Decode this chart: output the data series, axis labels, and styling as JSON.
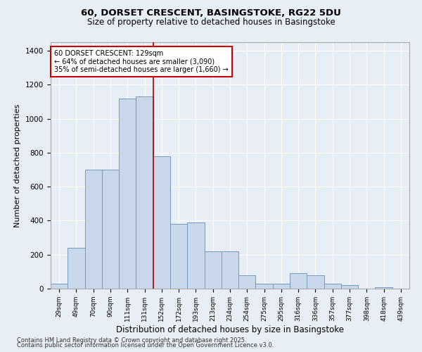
{
  "title_line1": "60, DORSET CRESCENT, BASINGSTOKE, RG22 5DU",
  "title_line2": "Size of property relative to detached houses in Basingstoke",
  "xlabel": "Distribution of detached houses by size in Basingstoke",
  "ylabel": "Number of detached properties",
  "bar_categories": [
    "29sqm",
    "49sqm",
    "70sqm",
    "90sqm",
    "111sqm",
    "131sqm",
    "152sqm",
    "172sqm",
    "193sqm",
    "213sqm",
    "234sqm",
    "254sqm",
    "275sqm",
    "295sqm",
    "316sqm",
    "336sqm",
    "357sqm",
    "377sqm",
    "398sqm",
    "418sqm",
    "439sqm"
  ],
  "bar_values": [
    30,
    240,
    700,
    700,
    1120,
    1130,
    780,
    380,
    390,
    220,
    220,
    80,
    30,
    30,
    90,
    80,
    30,
    20,
    0,
    10,
    0
  ],
  "bar_color": "#c8d8ea",
  "bar_edge_color": "#7799bb",
  "background_color": "#e8eef5",
  "grid_color": "#ffffff",
  "property_line_x": 5.5,
  "annotation_text": "60 DORSET CRESCENT: 129sqm\n← 64% of detached houses are smaller (3,090)\n35% of semi-detached houses are larger (1,660) →",
  "annotation_box_color": "#ffffff",
  "annotation_box_edge": "#cc0000",
  "vline_color": "#aa0000",
  "ylim": [
    0,
    1450
  ],
  "yticks": [
    0,
    200,
    400,
    600,
    800,
    1000,
    1200,
    1400
  ],
  "footer_line1": "Contains HM Land Registry data © Crown copyright and database right 2025.",
  "footer_line2": "Contains public sector information licensed under the Open Government Licence v3.0."
}
